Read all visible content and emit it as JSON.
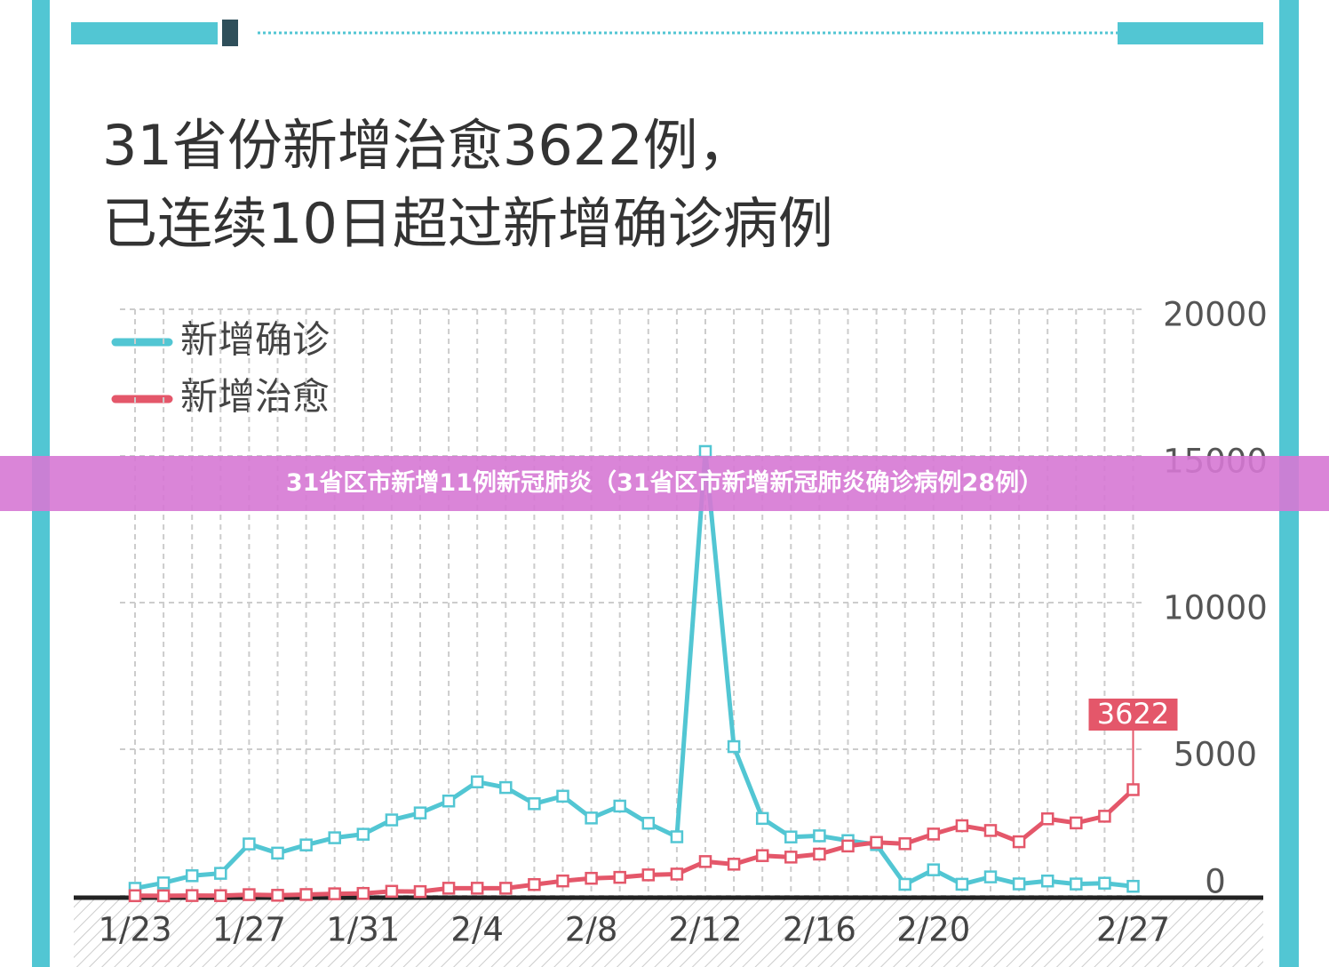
{
  "chart_data": {
    "type": "line",
    "title": [
      "31省份新增治愈3622例，",
      "已连续10日超过新增确诊病例"
    ],
    "categories": [
      "1/23",
      null,
      null,
      null,
      "1/27",
      null,
      null,
      null,
      "1/31",
      null,
      null,
      null,
      "2/4",
      null,
      null,
      null,
      "2/8",
      null,
      null,
      null,
      "2/12",
      null,
      null,
      null,
      "2/16",
      null,
      null,
      null,
      "2/20",
      null,
      null,
      null,
      null,
      null,
      null,
      "2/27"
    ],
    "series": [
      {
        "name": "新增确诊",
        "color": "#52c6d3",
        "values": [
          259,
          444,
          688,
          769,
          1771,
          1459,
          1737,
          1982,
          2102,
          2590,
          2829,
          3235,
          3887,
          3694,
          3143,
          3399,
          2656,
          3062,
          2478,
          2015,
          15152,
          5090,
          2641,
          2009,
          2048,
          1886,
          1749,
          394,
          889,
          397,
          648,
          409,
          508,
          406,
          433,
          327
        ]
      },
      {
        "name": "新增治愈",
        "color": "#e4576a",
        "values": [
          6,
          3,
          11,
          9,
          43,
          21,
          47,
          72,
          85,
          157,
          147,
          262,
          262,
          261,
          387,
          510,
          600,
          632,
          716,
          744,
          1171,
          1081,
          1373,
          1323,
          1425,
          1701,
          1824,
          1779,
          2109,
          2393,
          2230,
          1846,
          2628,
          2488,
          2716,
          3622
        ]
      }
    ],
    "ylim": [
      0,
      20000
    ],
    "yticks": [
      0,
      5000,
      10000,
      15000,
      20000
    ],
    "grid": true
  },
  "banner": "31省区市新增11例新冠肺炎（31省区市新增新冠肺炎确诊病例28例）"
}
